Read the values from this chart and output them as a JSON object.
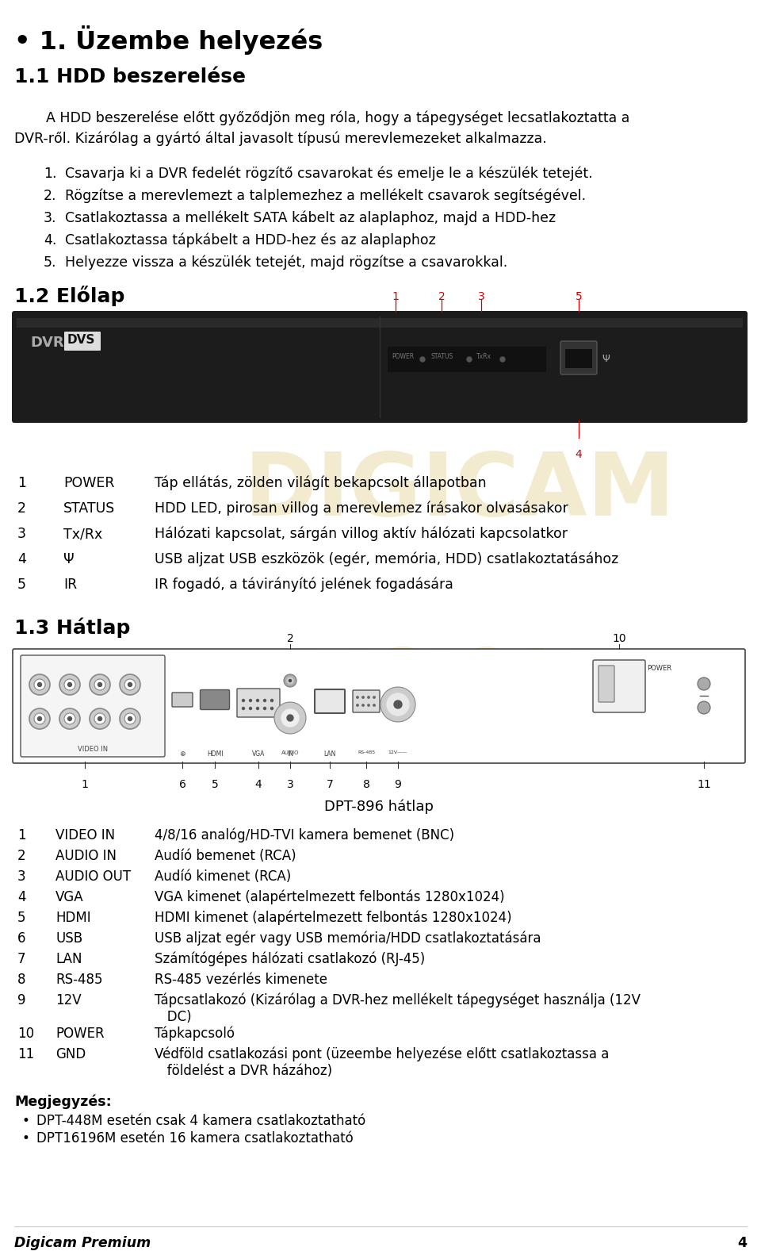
{
  "title_bullet": "• 1. Üzembe helyezés",
  "h1": "1.1 HDD beszerelése",
  "h2": "1.2 Előlap",
  "h3": "1.3 Hátlap",
  "intro_line1": "A HDD beszerelése előtt győződjön meg róla, hogy a tápegységet lecsatlakoztatta a",
  "intro_line2": "DVR-ről. Kizárólag a gyártó által javasolt típusú merevlemezeket alkalmazza.",
  "steps": [
    [
      "1.",
      "Csavarja ki a DVR fedelét rögzítő csavarokat és emelje le a készülék tetejét."
    ],
    [
      "2.",
      "Rögzítse a merevlemezt a talplemezhez a mellékelt csavarok segítségével."
    ],
    [
      "3.",
      "Csatlakoztassa a mellékelt SATA kábelt az alaplaphoz, majd a HDD-hez"
    ],
    [
      "4.",
      "Csatlakoztassa tápkábelt a HDD-hez és az alaplaphoz"
    ],
    [
      "5.",
      "Helyezze vissza a készülék tetejét, majd rögzítse a csavarokkal."
    ]
  ],
  "front_labels": [
    [
      "1",
      "POWER",
      "Táp ellátás, zölden világít bekapcsolt állapotban"
    ],
    [
      "2",
      "STATUS",
      "HDD LED, pirosan villog a merevlemez írásakor olvasásakor"
    ],
    [
      "3",
      "Tx/Rx",
      "Hálózati kapcsolat, sárgán villog aktív hálózati kapcsolatkor"
    ],
    [
      "4",
      "Ψ",
      "USB aljzat USB eszközök (egér, memória, HDD) csatlakoztatásához"
    ],
    [
      "5",
      "IR",
      "IR fogadó, a távirányító jelének fogadására"
    ]
  ],
  "back_labels": [
    [
      "1",
      "VIDEO IN",
      "4/8/16 analóg/HD-TVI kamera bemenet (BNC)"
    ],
    [
      "2",
      "AUDIO IN",
      "Audíó bemenet (RCA)"
    ],
    [
      "3",
      "AUDIO OUT",
      "Audíó kimenet (RCA)"
    ],
    [
      "4",
      "VGA",
      "VGA kimenet (alapértelmezett felbontás 1280x1024)"
    ],
    [
      "5",
      "HDMI",
      "HDMI kimenet (alapértelmezett felbontás 1280x1024)"
    ],
    [
      "6",
      "USB",
      "USB aljzat egér vagy USB memória/HDD csatlakoztatására"
    ],
    [
      "7",
      "LAN",
      "Számítógépes hálózati csatlakozó (RJ-45)"
    ],
    [
      "8",
      "RS-485",
      "RS-485 vezérlés kimenete"
    ],
    [
      "9",
      "12V",
      "Tápcsatlakozó (Kizárólag a DVR-hez mellékelt tápegységet használja (12V\n   DC)"
    ],
    [
      "10",
      "POWER",
      "Tápkapcsoló"
    ],
    [
      "11",
      "GND",
      "Védföld csatlakozási pont (üzeembe helyezése előtt csatlakoztassa a\n   földelést a DVR házához)"
    ]
  ],
  "back_caption": "DPT-896 hátlap",
  "notes_title": "Megjegyzés:",
  "notes": [
    "DPT-448M esetén csak 4 kamera csatlakoztatható",
    "DPT16196M esetén 16 kamera csatlakoztatható"
  ],
  "footer": "Digicam Premium",
  "page_num": "4",
  "bg_color": "#ffffff",
  "text_color": "#000000",
  "red_color": "#cc0000",
  "watermark_color": "#e8d8a0"
}
